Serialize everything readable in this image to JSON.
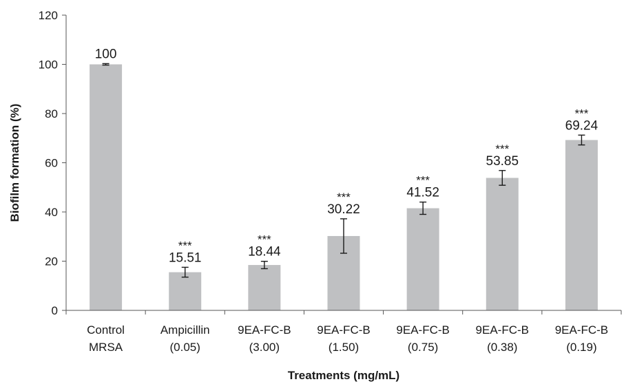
{
  "chart_data": {
    "type": "bar",
    "categories": [
      [
        "Control",
        "MRSA"
      ],
      [
        "Ampicillin",
        "(0.05)"
      ],
      [
        "9EA-FC-B",
        "(3.00)"
      ],
      [
        "9EA-FC-B",
        "(1.50)"
      ],
      [
        "9EA-FC-B",
        "(0.75)"
      ],
      [
        "9EA-FC-B",
        "(0.38)"
      ],
      [
        "9EA-FC-B",
        "(0.19)"
      ]
    ],
    "values": [
      100,
      15.51,
      18.44,
      30.22,
      41.52,
      53.85,
      69.24
    ],
    "value_labels": [
      "100",
      "15.51",
      "18.44",
      "30.22",
      "41.52",
      "53.85",
      "69.24"
    ],
    "errors": [
      0.3,
      2.0,
      1.5,
      7.0,
      2.5,
      3.0,
      2.0
    ],
    "significance": [
      "",
      "***",
      "***",
      "***",
      "***",
      "***",
      "***"
    ],
    "xlabel": "Treatments (mg/mL)",
    "ylabel": "Biofilm formation (%)",
    "ylim": [
      0,
      120
    ],
    "yticks": [
      0,
      20,
      40,
      60,
      80,
      100,
      120
    ],
    "grid": false,
    "legend": "none",
    "bar_color": "#bfc0c2"
  }
}
